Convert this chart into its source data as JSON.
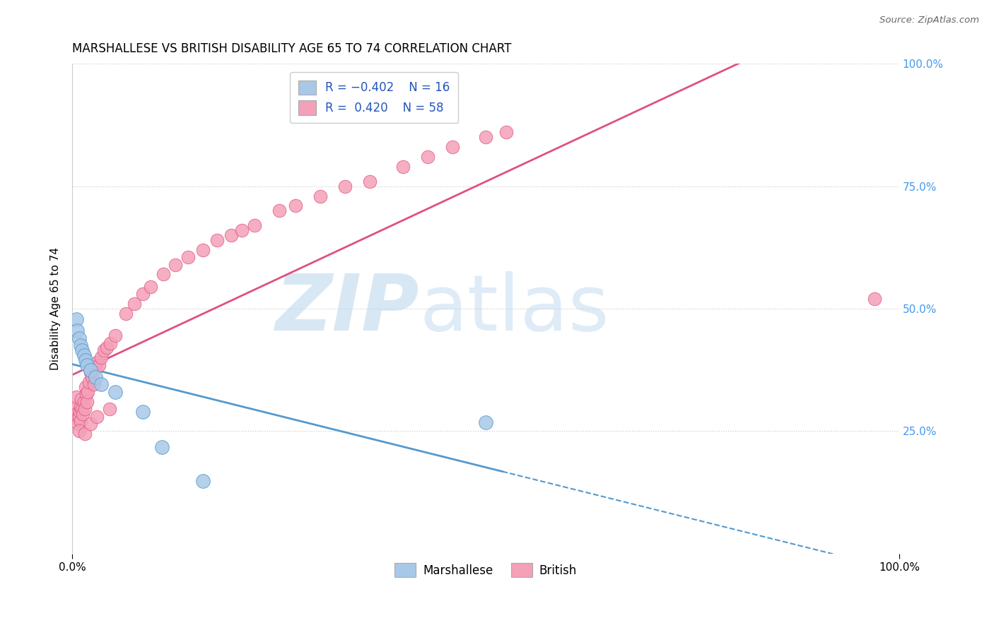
{
  "title": "MARSHALLESE VS BRITISH DISABILITY AGE 65 TO 74 CORRELATION CHART",
  "source": "Source: ZipAtlas.com",
  "ylabel": "Disability Age 65 to 74",
  "xlim": [
    0.0,
    1.0
  ],
  "ylim": [
    0.0,
    1.0
  ],
  "marshallese_color": "#a8c8e8",
  "british_color": "#f4a0b8",
  "marshallese_line_color": "#5599cc",
  "british_line_color": "#e05080",
  "background_color": "#ffffff",
  "grid_color": "#cccccc",
  "marshallese_x": [
    0.005,
    0.007,
    0.009,
    0.011,
    0.013,
    0.015,
    0.018,
    0.022,
    0.025,
    0.03,
    0.035,
    0.05,
    0.085,
    0.105,
    0.16,
    0.5
  ],
  "marshallese_y": [
    0.475,
    0.455,
    0.44,
    0.425,
    0.415,
    0.41,
    0.395,
    0.385,
    0.375,
    0.365,
    0.355,
    0.345,
    0.305,
    0.22,
    0.155,
    0.265
  ],
  "british_x": [
    0.005,
    0.007,
    0.008,
    0.009,
    0.01,
    0.012,
    0.013,
    0.014,
    0.015,
    0.016,
    0.017,
    0.018,
    0.019,
    0.02,
    0.022,
    0.024,
    0.025,
    0.026,
    0.028,
    0.03,
    0.032,
    0.034,
    0.036,
    0.038,
    0.04,
    0.043,
    0.046,
    0.05,
    0.054,
    0.058,
    0.065,
    0.07,
    0.075,
    0.08,
    0.09,
    0.1,
    0.11,
    0.12,
    0.13,
    0.14,
    0.155,
    0.165,
    0.18,
    0.19,
    0.2,
    0.21,
    0.22,
    0.25,
    0.26,
    0.28,
    0.3,
    0.33,
    0.36,
    0.42,
    0.46,
    0.5,
    0.52,
    0.97
  ],
  "british_y": [
    0.32,
    0.3,
    0.31,
    0.29,
    0.28,
    0.27,
    0.285,
    0.275,
    0.26,
    0.35,
    0.33,
    0.31,
    0.295,
    0.28,
    0.38,
    0.36,
    0.345,
    0.33,
    0.42,
    0.41,
    0.39,
    0.38,
    0.4,
    0.38,
    0.44,
    0.42,
    0.46,
    0.45,
    0.5,
    0.48,
    0.55,
    0.53,
    0.51,
    0.58,
    0.57,
    0.56,
    0.62,
    0.61,
    0.6,
    0.59,
    0.63,
    0.61,
    0.64,
    0.62,
    0.65,
    0.7,
    0.68,
    0.72,
    0.7,
    0.75,
    0.73,
    0.78,
    0.76,
    0.8,
    0.82,
    0.84,
    0.86,
    0.52
  ],
  "brit_line_x_start": 0.0,
  "brit_line_x_end": 1.0,
  "marsh_line_solid_end": 0.52,
  "marsh_line_dash_end": 1.0
}
